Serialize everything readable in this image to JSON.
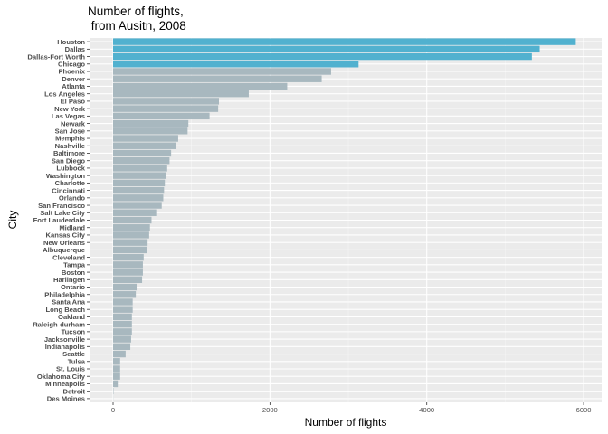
{
  "chart_data": {
    "type": "bar",
    "orientation": "horizontal",
    "title_line1": "Number of flights,",
    "title_line2": " from Ausitn, 2008",
    "xlabel": "Number of flights",
    "ylabel": "City",
    "xlim": [
      -300,
      6230
    ],
    "xticks": [
      0,
      2000,
      4000,
      6000
    ],
    "xtick_labels": [
      "0",
      "2000",
      "4000",
      "6000"
    ],
    "grid": true,
    "panel_background": "#ebebeb",
    "highlight_color": "#51b1cf",
    "default_color": "#a8b8bf",
    "highlight_top_n": 4,
    "categories": [
      "Houston",
      "Dallas",
      "Dallas-Fort Worth",
      "Chicago",
      "Phoenix",
      "Denver",
      "Atlanta",
      "Los Angeles",
      "El Paso",
      "New York",
      "Las Vegas",
      "Newark",
      "San Jose",
      "Memphis",
      "Nashville",
      "Baltimore",
      "San Diego",
      "Lubbock",
      "Washington",
      "Charlotte",
      "Cincinnati",
      "Orlando",
      "San Francisco",
      "Salt Lake City",
      "Fort Lauderdale",
      "Midland",
      "Kansas City",
      "New Orleans",
      "Albuquerque",
      "Cleveland",
      "Tampa",
      "Boston",
      "Harlingen",
      "Ontario",
      "Philadelphia",
      "Santa Ana",
      "Long Beach",
      "Oakland",
      "Raleigh-durham",
      "Tucson",
      "Jacksonville",
      "Indianapolis",
      "Seattle",
      "Tulsa",
      "St. Louis",
      "Oklahoma City",
      "Minneapolis",
      "Detroit",
      "Des Moines"
    ],
    "values": [
      5900,
      5440,
      5340,
      3130,
      2780,
      2660,
      2220,
      1730,
      1350,
      1340,
      1230,
      960,
      950,
      830,
      800,
      740,
      720,
      690,
      670,
      660,
      650,
      640,
      620,
      550,
      490,
      470,
      460,
      440,
      430,
      390,
      380,
      380,
      370,
      300,
      290,
      250,
      250,
      240,
      240,
      240,
      230,
      220,
      160,
      90,
      90,
      90,
      60,
      5,
      2
    ]
  }
}
